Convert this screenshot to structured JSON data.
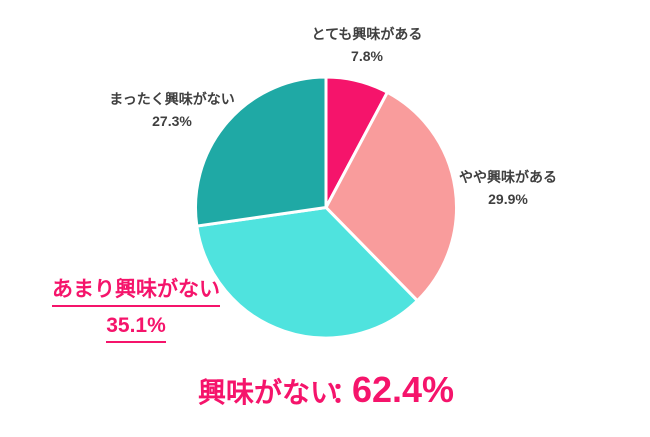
{
  "chart_data": {
    "type": "pie",
    "start_angle_deg": 0,
    "direction": "clockwise",
    "slices": [
      {
        "label": "とても興味がある",
        "value": 7.8,
        "display": "7.8%",
        "color": "#F5146B"
      },
      {
        "label": "やや興味がある",
        "value": 29.9,
        "display": "29.9%",
        "color": "#F99C9C"
      },
      {
        "label": "あまり興味がない",
        "value": 35.1,
        "display": "35.1%",
        "color": "#4FE3DE",
        "highlighted": true
      },
      {
        "label": "まったく興味がない",
        "value": 27.3,
        "display": "27.3%",
        "color": "#1FA9A5"
      }
    ],
    "annotation": {
      "prefix": "興味がない",
      "colon": "：",
      "value": "62.4%",
      "color": "#F5146B"
    },
    "legend_position": "none",
    "slice_border_color": "#ffffff"
  }
}
